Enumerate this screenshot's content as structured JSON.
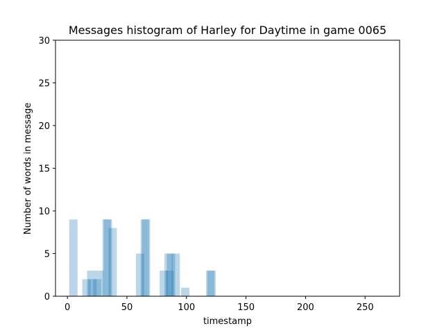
{
  "chart_data": {
    "type": "bar",
    "title": "Messages histogram of Harley for Daytime in game 0065",
    "xlabel": "timestamp",
    "ylabel": "Number of words in message",
    "xlim": [
      -10,
      279
    ],
    "ylim": [
      0,
      30
    ],
    "xticks": [
      0,
      50,
      100,
      150,
      200,
      250
    ],
    "yticks": [
      0,
      5,
      10,
      15,
      20,
      25,
      30
    ],
    "bar_width": 7,
    "bar_color": "#1f77b4",
    "bar_opacity": 0.3,
    "grid": false,
    "legend": "none",
    "bars": [
      {
        "x": 5,
        "y": 9
      },
      {
        "x": 16,
        "y": 2
      },
      {
        "x": 20,
        "y": 3
      },
      {
        "x": 21,
        "y": 2
      },
      {
        "x": 25,
        "y": 2
      },
      {
        "x": 27,
        "y": 3
      },
      {
        "x": 33,
        "y": 9
      },
      {
        "x": 34,
        "y": 9
      },
      {
        "x": 38,
        "y": 8
      },
      {
        "x": 61,
        "y": 5
      },
      {
        "x": 65,
        "y": 9
      },
      {
        "x": 66,
        "y": 9
      },
      {
        "x": 81,
        "y": 3
      },
      {
        "x": 85,
        "y": 5
      },
      {
        "x": 86,
        "y": 3
      },
      {
        "x": 87,
        "y": 5
      },
      {
        "x": 91,
        "y": 5
      },
      {
        "x": 99,
        "y": 1
      },
      {
        "x": 120,
        "y": 3
      },
      {
        "x": 121,
        "y": 3
      }
    ]
  }
}
